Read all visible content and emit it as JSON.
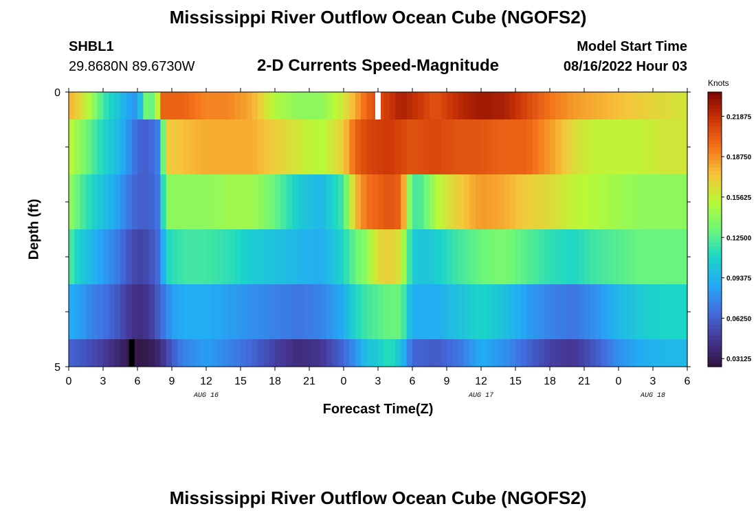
{
  "header": {
    "title": "Mississippi River Outflow Ocean Cube (NGOFS2)",
    "station_id": "SHBL1",
    "station_coords": "29.8680N  89.6730W",
    "product": "2-D Currents Speed-Magnitude",
    "model_start_label": "Model Start Time",
    "model_start_value": "08/16/2022 Hour 03"
  },
  "second_panel": {
    "title": "Mississippi River Outflow Ocean Cube (NGOFS2)"
  },
  "chart_data": {
    "type": "heatmap",
    "title": "2-D Currents Speed-Magnitude",
    "xlabel": "Forecast Time(Z)",
    "ylabel": "Depth (ft)",
    "x_range": [
      0,
      54
    ],
    "y_range": [
      0,
      5
    ],
    "x_ticks": [
      0,
      3,
      6,
      9,
      12,
      15,
      18,
      21,
      24,
      27,
      30,
      33,
      36,
      39,
      42,
      45,
      48,
      51,
      54
    ],
    "x_tick_labels": [
      "0",
      "3",
      "6",
      "9",
      "12",
      "15",
      "18",
      "21",
      "0",
      "3",
      "6",
      "9",
      "12",
      "15",
      "18",
      "21",
      "0",
      "3",
      "6"
    ],
    "y_tick_labels": [
      "0",
      "5"
    ],
    "date_labels": [
      {
        "text": "AUG 16",
        "x": 12
      },
      {
        "text": "AUG 17",
        "x": 36
      },
      {
        "text": "AUG 18",
        "x": 51
      }
    ],
    "colorbar": {
      "title": "Knots",
      "min": 0.025,
      "max": 0.2375,
      "tick_values": [
        0.03125,
        0.0625,
        0.09375,
        0.125,
        0.15625,
        0.1875,
        0.21875
      ],
      "tick_labels": [
        "0.03125",
        "0.06250",
        "0.09375",
        "0.12500",
        "0.15625",
        "0.18750",
        "0.21875"
      ]
    },
    "rows": [
      {
        "depth_top": 0,
        "depth_bottom": 0.5,
        "keys": [
          [
            0,
            0.18
          ],
          [
            1,
            0.165
          ],
          [
            2,
            0.145
          ],
          [
            3,
            0.12
          ],
          [
            4,
            0.105
          ],
          [
            5,
            0.09
          ],
          [
            6,
            0.08
          ],
          [
            7,
            0.15
          ],
          [
            7.5,
            0.11
          ],
          [
            8,
            0.2
          ],
          [
            10,
            0.2
          ],
          [
            12,
            0.19
          ],
          [
            14,
            0.19
          ],
          [
            16,
            0.18
          ],
          [
            18,
            0.15
          ],
          [
            20,
            0.14
          ],
          [
            22,
            0.14
          ],
          [
            24,
            0.16
          ],
          [
            26,
            0.2
          ],
          [
            28,
            0.215
          ],
          [
            29,
            0.225
          ],
          [
            30,
            0.22
          ],
          [
            32,
            0.205
          ],
          [
            34,
            0.22
          ],
          [
            36,
            0.228
          ],
          [
            38,
            0.225
          ],
          [
            40,
            0.21
          ],
          [
            42,
            0.195
          ],
          [
            44,
            0.185
          ],
          [
            46,
            0.18
          ],
          [
            48,
            0.175
          ],
          [
            50,
            0.17
          ],
          [
            52,
            0.165
          ],
          [
            54,
            0.16
          ]
        ]
      },
      {
        "depth_top": 0.5,
        "depth_bottom": 1.5,
        "keys": [
          [
            0,
            0.155
          ],
          [
            1,
            0.14
          ],
          [
            2,
            0.125
          ],
          [
            3,
            0.11
          ],
          [
            4,
            0.1
          ],
          [
            5,
            0.085
          ],
          [
            6,
            0.065
          ],
          [
            7,
            0.062
          ],
          [
            7.8,
            0.075
          ],
          [
            8.2,
            0.125
          ],
          [
            8.6,
            0.17
          ],
          [
            10,
            0.175
          ],
          [
            12,
            0.18
          ],
          [
            14,
            0.18
          ],
          [
            16,
            0.18
          ],
          [
            18,
            0.17
          ],
          [
            20,
            0.16
          ],
          [
            22,
            0.15
          ],
          [
            24,
            0.17
          ],
          [
            25,
            0.2
          ],
          [
            26,
            0.21
          ],
          [
            28,
            0.215
          ],
          [
            30,
            0.205
          ],
          [
            32,
            0.21
          ],
          [
            34,
            0.205
          ],
          [
            36,
            0.205
          ],
          [
            38,
            0.2
          ],
          [
            40,
            0.2
          ],
          [
            42,
            0.185
          ],
          [
            44,
            0.165
          ],
          [
            46,
            0.155
          ],
          [
            48,
            0.155
          ],
          [
            50,
            0.155
          ],
          [
            52,
            0.16
          ],
          [
            54,
            0.16
          ]
        ]
      },
      {
        "depth_top": 1.5,
        "depth_bottom": 2.5,
        "keys": [
          [
            0,
            0.145
          ],
          [
            1,
            0.125
          ],
          [
            2,
            0.11
          ],
          [
            3,
            0.1
          ],
          [
            4,
            0.09
          ],
          [
            5,
            0.075
          ],
          [
            6,
            0.062
          ],
          [
            7,
            0.062
          ],
          [
            7.8,
            0.07
          ],
          [
            8.2,
            0.11
          ],
          [
            8.6,
            0.14
          ],
          [
            10,
            0.14
          ],
          [
            12,
            0.14
          ],
          [
            14,
            0.145
          ],
          [
            16,
            0.145
          ],
          [
            18,
            0.13
          ],
          [
            20,
            0.105
          ],
          [
            22,
            0.095
          ],
          [
            24,
            0.12
          ],
          [
            25,
            0.175
          ],
          [
            26,
            0.195
          ],
          [
            28,
            0.205
          ],
          [
            29,
            0.2
          ],
          [
            30,
            0.12
          ],
          [
            31,
            0.125
          ],
          [
            32,
            0.15
          ],
          [
            34,
            0.17
          ],
          [
            36,
            0.185
          ],
          [
            38,
            0.18
          ],
          [
            40,
            0.17
          ],
          [
            42,
            0.165
          ],
          [
            44,
            0.155
          ],
          [
            46,
            0.15
          ],
          [
            48,
            0.145
          ],
          [
            50,
            0.14
          ],
          [
            52,
            0.14
          ],
          [
            54,
            0.14
          ]
        ]
      },
      {
        "depth_top": 2.5,
        "depth_bottom": 3.5,
        "keys": [
          [
            0,
            0.125
          ],
          [
            1,
            0.105
          ],
          [
            2,
            0.095
          ],
          [
            3,
            0.085
          ],
          [
            4,
            0.075
          ],
          [
            5,
            0.062
          ],
          [
            6,
            0.05
          ],
          [
            7,
            0.055
          ],
          [
            8,
            0.07
          ],
          [
            8.5,
            0.11
          ],
          [
            10,
            0.12
          ],
          [
            12,
            0.12
          ],
          [
            14,
            0.115
          ],
          [
            16,
            0.105
          ],
          [
            18,
            0.1
          ],
          [
            20,
            0.095
          ],
          [
            22,
            0.09
          ],
          [
            24,
            0.11
          ],
          [
            25,
            0.13
          ],
          [
            26,
            0.14
          ],
          [
            27,
            0.165
          ],
          [
            28,
            0.17
          ],
          [
            29,
            0.16
          ],
          [
            30,
            0.105
          ],
          [
            31,
            0.1
          ],
          [
            32,
            0.105
          ],
          [
            34,
            0.12
          ],
          [
            36,
            0.13
          ],
          [
            38,
            0.135
          ],
          [
            40,
            0.125
          ],
          [
            42,
            0.115
          ],
          [
            44,
            0.11
          ],
          [
            46,
            0.12
          ],
          [
            48,
            0.125
          ],
          [
            50,
            0.13
          ],
          [
            52,
            0.13
          ],
          [
            54,
            0.13
          ]
        ]
      },
      {
        "depth_top": 3.5,
        "depth_bottom": 4.5,
        "keys": [
          [
            0,
            0.09
          ],
          [
            1,
            0.085
          ],
          [
            2,
            0.075
          ],
          [
            3,
            0.07
          ],
          [
            4,
            0.062
          ],
          [
            5,
            0.05
          ],
          [
            6,
            0.04
          ],
          [
            7,
            0.045
          ],
          [
            8,
            0.065
          ],
          [
            9,
            0.085
          ],
          [
            10,
            0.09
          ],
          [
            12,
            0.09
          ],
          [
            14,
            0.085
          ],
          [
            16,
            0.08
          ],
          [
            18,
            0.075
          ],
          [
            20,
            0.07
          ],
          [
            22,
            0.075
          ],
          [
            24,
            0.09
          ],
          [
            25,
            0.11
          ],
          [
            26,
            0.12
          ],
          [
            27,
            0.125
          ],
          [
            28,
            0.13
          ],
          [
            29,
            0.13
          ],
          [
            30,
            0.09
          ],
          [
            32,
            0.09
          ],
          [
            34,
            0.1
          ],
          [
            36,
            0.11
          ],
          [
            38,
            0.1
          ],
          [
            40,
            0.085
          ],
          [
            42,
            0.075
          ],
          [
            44,
            0.07
          ],
          [
            46,
            0.08
          ],
          [
            48,
            0.095
          ],
          [
            50,
            0.105
          ],
          [
            52,
            0.11
          ],
          [
            54,
            0.11
          ]
        ]
      },
      {
        "depth_top": 4.5,
        "depth_bottom": 5.0,
        "keys": [
          [
            0,
            0.065
          ],
          [
            1,
            0.06
          ],
          [
            2,
            0.055
          ],
          [
            3,
            0.048
          ],
          [
            4,
            0.04
          ],
          [
            5,
            0.032
          ],
          [
            6,
            0.028
          ],
          [
            7,
            0.03
          ],
          [
            8,
            0.04
          ],
          [
            9,
            0.06
          ],
          [
            10,
            0.075
          ],
          [
            12,
            0.085
          ],
          [
            14,
            0.075
          ],
          [
            16,
            0.065
          ],
          [
            18,
            0.05
          ],
          [
            20,
            0.04
          ],
          [
            22,
            0.045
          ],
          [
            24,
            0.065
          ],
          [
            25,
            0.08
          ],
          [
            26,
            0.1
          ],
          [
            27,
            0.105
          ],
          [
            28,
            0.115
          ],
          [
            29,
            0.1
          ],
          [
            30,
            0.065
          ],
          [
            32,
            0.06
          ],
          [
            34,
            0.07
          ],
          [
            36,
            0.09
          ],
          [
            38,
            0.08
          ],
          [
            40,
            0.065
          ],
          [
            42,
            0.05
          ],
          [
            44,
            0.045
          ],
          [
            46,
            0.06
          ],
          [
            48,
            0.08
          ],
          [
            50,
            0.09
          ],
          [
            52,
            0.095
          ],
          [
            54,
            0.095
          ]
        ]
      }
    ],
    "markers": [
      {
        "x": 27,
        "depth_top": 0,
        "depth_bottom": 0.5,
        "color": "#ffffff"
      },
      {
        "x": 5.5,
        "depth_top": 4.5,
        "depth_bottom": 5.0,
        "color": "#000000"
      }
    ],
    "grid": false,
    "legend": "right"
  }
}
